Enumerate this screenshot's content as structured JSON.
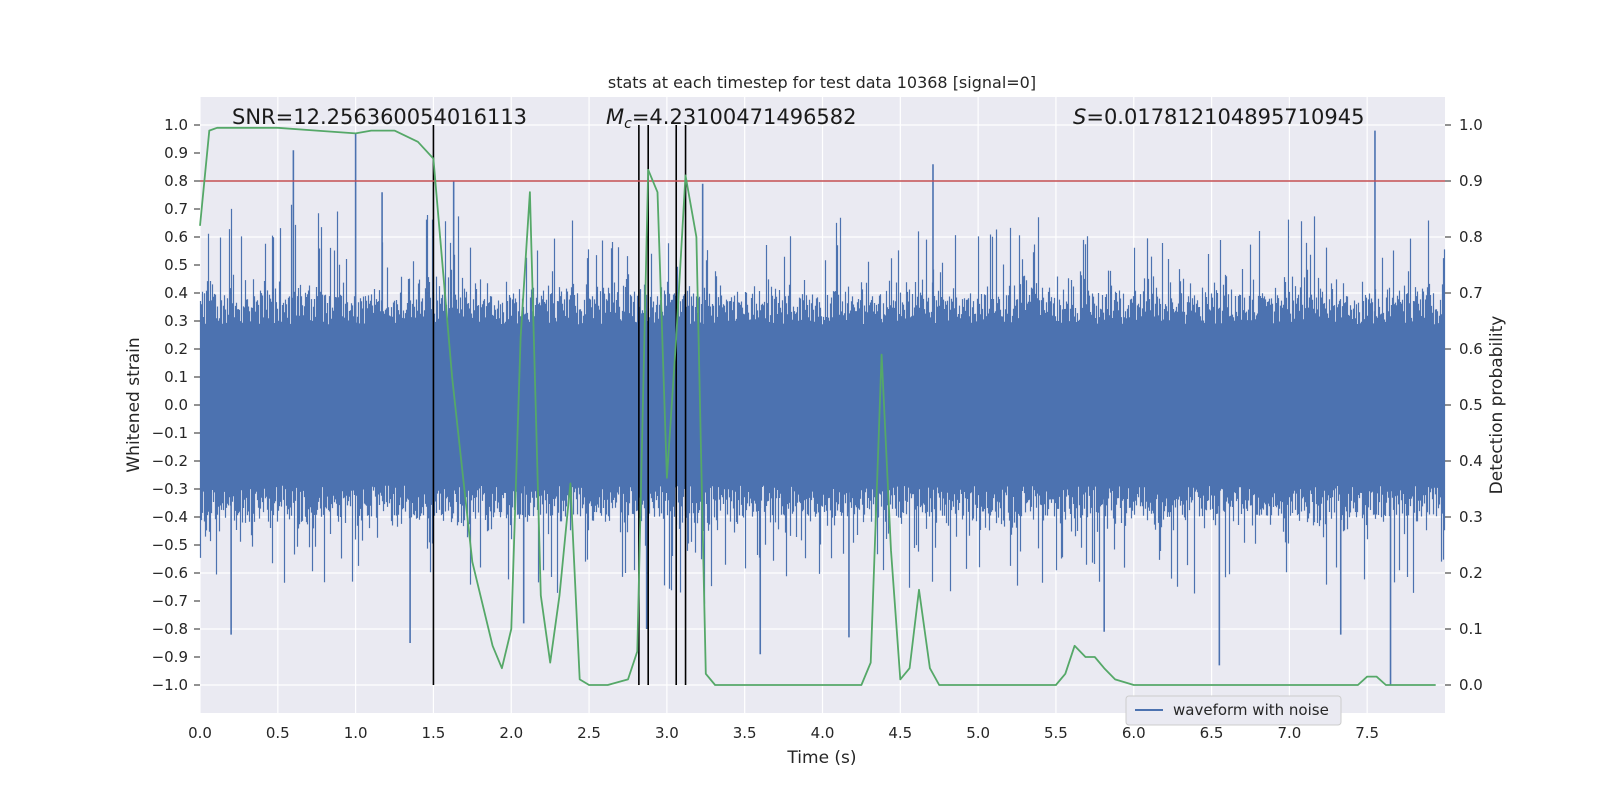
{
  "chart_data": {
    "type": "line",
    "title": "stats at each timestep for test data 10368 [signal=0]",
    "xlabel": "Time (s)",
    "ylabel": "Whitened strain",
    "y2label": "Detection probability",
    "xlim": [
      0.0,
      8.0
    ],
    "ylim": [
      -1.1,
      1.1
    ],
    "y2lim": [
      -0.05,
      1.05
    ],
    "x_ticks": [
      "0.0",
      "0.5",
      "1.0",
      "1.5",
      "2.0",
      "2.5",
      "3.0",
      "3.5",
      "4.0",
      "4.5",
      "5.0",
      "5.5",
      "6.0",
      "6.5",
      "7.0",
      "7.5"
    ],
    "y_ticks": [
      "1.0",
      "0.9",
      "0.8",
      "0.7",
      "0.6",
      "0.5",
      "0.4",
      "0.3",
      "0.2",
      "0.1",
      "0.0",
      "-0.1",
      "-0.2",
      "-0.3",
      "-0.4",
      "-0.5",
      "-0.6",
      "-0.7",
      "-0.8",
      "-0.9",
      "-1.0"
    ],
    "y2_ticks": [
      "1.0",
      "0.9",
      "0.8",
      "0.7",
      "0.6",
      "0.5",
      "0.4",
      "0.3",
      "0.2",
      "0.1",
      "0.0"
    ],
    "grid": true,
    "legend_position": "lower-right",
    "annotations": {
      "snr": "SNR=12.256360054016113",
      "mc_symbol": "M",
      "mc_sub": "c",
      "mc_value": "=4.23100471496582",
      "s_symbol": "S",
      "s_value": "=0.017812104895710945"
    },
    "threshold_probability": 0.9,
    "vertical_markers_s": [
      1.5,
      2.82,
      2.88,
      3.06,
      3.12
    ],
    "series": [
      {
        "name": "waveform with noise",
        "color": "#4c72b0",
        "description_samples": 8192,
        "envelope_typical": 0.4,
        "peaks": [
          {
            "x": 0.2,
            "y": -0.82
          },
          {
            "x": 0.6,
            "y": 0.91
          },
          {
            "x": 1.0,
            "y": 0.97
          },
          {
            "x": 1.17,
            "y": 0.76
          },
          {
            "x": 1.35,
            "y": -0.85
          },
          {
            "x": 1.63,
            "y": 0.8
          },
          {
            "x": 2.08,
            "y": -0.78
          },
          {
            "x": 2.87,
            "y": -0.8
          },
          {
            "x": 3.23,
            "y": 0.79
          },
          {
            "x": 3.6,
            "y": -0.89
          },
          {
            "x": 4.17,
            "y": -0.83
          },
          {
            "x": 4.71,
            "y": 0.86
          },
          {
            "x": 5.81,
            "y": -0.81
          },
          {
            "x": 6.55,
            "y": -0.93
          },
          {
            "x": 7.33,
            "y": -0.82
          },
          {
            "x": 7.55,
            "y": 0.98
          },
          {
            "x": 7.65,
            "y": -1.0
          }
        ]
      },
      {
        "name": "",
        "color": "#55a868",
        "axis": "right",
        "x": [
          0.0,
          0.06,
          0.11,
          0.25,
          0.5,
          0.75,
          1.0,
          1.1,
          1.25,
          1.4,
          1.5,
          1.62,
          1.75,
          1.88,
          1.94,
          2.0,
          2.06,
          2.12,
          2.19,
          2.25,
          2.31,
          2.38,
          2.44,
          2.5,
          2.62,
          2.75,
          2.81,
          2.88,
          2.94,
          3.0,
          3.06,
          3.12,
          3.19,
          3.25,
          3.31,
          3.38,
          3.5,
          3.75,
          4.0,
          4.25,
          4.31,
          4.38,
          4.44,
          4.5,
          4.56,
          4.62,
          4.69,
          4.75,
          5.0,
          5.25,
          5.5,
          5.56,
          5.62,
          5.69,
          5.75,
          5.81,
          5.88,
          6.0,
          6.25,
          6.5,
          6.75,
          7.0,
          7.25,
          7.44,
          7.5,
          7.56,
          7.62,
          7.75,
          7.94
        ],
        "y": [
          0.82,
          0.99,
          0.995,
          0.995,
          0.995,
          0.99,
          0.985,
          0.99,
          0.99,
          0.97,
          0.94,
          0.55,
          0.22,
          0.07,
          0.03,
          0.1,
          0.62,
          0.88,
          0.16,
          0.04,
          0.16,
          0.36,
          0.01,
          0.0,
          0.0,
          0.01,
          0.06,
          0.92,
          0.88,
          0.37,
          0.62,
          0.91,
          0.8,
          0.02,
          0.0,
          0.0,
          0.0,
          0.0,
          0.0,
          0.0,
          0.04,
          0.59,
          0.24,
          0.01,
          0.03,
          0.17,
          0.03,
          0.0,
          0.0,
          0.0,
          0.0,
          0.02,
          0.07,
          0.05,
          0.05,
          0.03,
          0.01,
          0.0,
          0.0,
          0.0,
          0.0,
          0.0,
          0.0,
          0.0,
          0.015,
          0.015,
          0.0,
          0.0,
          0.0
        ]
      }
    ]
  },
  "colors": {
    "plot_background": "#eaeaf2",
    "grid": "#ffffff",
    "waveform": "#4c72b0",
    "probability": "#55a868",
    "threshold": "#c44e52",
    "markers": "#000000"
  }
}
